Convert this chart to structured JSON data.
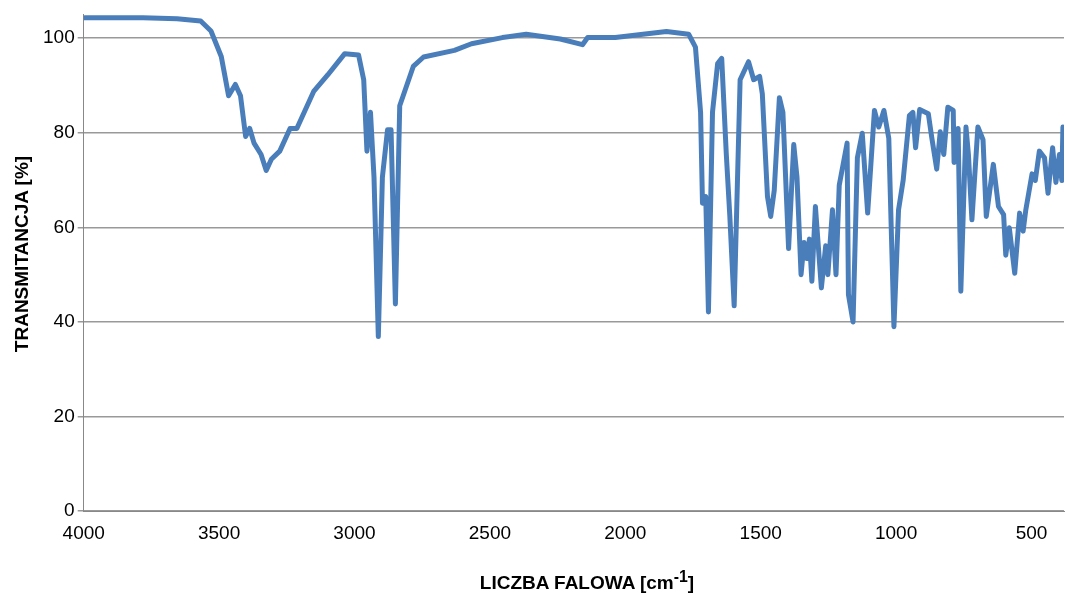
{
  "chart_data": {
    "type": "line",
    "xlabel": "LICZBA FALOWA [cm$^{-1}$]",
    "ylabel": "TRANSMITANCJA [%]",
    "xlim": [
      4000,
      380
    ],
    "xticks": [
      4000,
      3500,
      3000,
      2500,
      2000,
      1500,
      1000,
      500
    ],
    "ylim": [
      0,
      105
    ],
    "yticks": [
      0,
      20,
      40,
      60,
      80,
      100
    ],
    "grid": "y",
    "marker": "none",
    "line_style": "solid",
    "series": [
      {
        "color": "#4a7ebb",
        "x": [
          3996,
          3781,
          3655,
          3568,
          3530,
          3492,
          3465,
          3440,
          3421,
          3402,
          3387,
          3371,
          3345,
          3326,
          3307,
          3276,
          3238,
          3213,
          3150,
          3099,
          3036,
          2985,
          2966,
          2954,
          2941,
          2928,
          2912,
          2897,
          2878,
          2865,
          2849,
          2833,
          2783,
          2745,
          2631,
          2568,
          2454,
          2366,
          2240,
          2158,
          2139,
          2037,
          1848,
          1766,
          1741,
          1722,
          1715,
          1703,
          1693,
          1678,
          1659,
          1644,
          1627,
          1614,
          1598,
          1576,
          1545,
          1526,
          1504,
          1494,
          1475,
          1463,
          1450,
          1431,
          1418,
          1397,
          1378,
          1366,
          1351,
          1340,
          1330,
          1320,
          1311,
          1298,
          1276,
          1260,
          1252,
          1235,
          1222,
          1210,
          1181,
          1176,
          1159,
          1143,
          1125,
          1105,
          1080,
          1064,
          1045,
          1027,
          1008,
          991,
          974,
          951,
          938,
          928,
          913,
          881,
          869,
          850,
          837,
          824,
          809,
          789,
          786,
          771,
          761,
          742,
          733,
          720,
          698,
          679,
          667,
          641,
          622,
          603,
          595,
          582,
          562,
          544,
          531,
          521,
          498,
          486,
          471,
          452,
          439,
          422,
          410,
          397,
          388,
          384
        ],
        "values": [
          104.3,
          104.3,
          104.1,
          103.6,
          101.5,
          96.1,
          87.8,
          90.2,
          87.8,
          79.2,
          80.9,
          77.8,
          75.4,
          72.0,
          74.4,
          76.1,
          80.9,
          80.9,
          88.8,
          92.2,
          96.7,
          96.4,
          91.2,
          76.1,
          84.3,
          70.6,
          36.9,
          70.6,
          80.6,
          80.6,
          43.8,
          85.7,
          94.0,
          96.0,
          97.4,
          98.8,
          100.1,
          100.8,
          99.8,
          98.6,
          100.1,
          100.1,
          101.4,
          100.8,
          98.1,
          84.3,
          65.1,
          66.5,
          42.1,
          84.3,
          94.6,
          95.7,
          75.4,
          62.3,
          43.4,
          91.2,
          95.0,
          91.2,
          91.9,
          88.2,
          66.5,
          62.3,
          67.8,
          87.4,
          84.3,
          55.5,
          77.5,
          70.6,
          50.0,
          56.8,
          53.4,
          57.5,
          48.6,
          64.4,
          47.2,
          56.1,
          50.0,
          63.7,
          50.0,
          68.9,
          77.8,
          45.8,
          40.0,
          74.7,
          79.9,
          63.0,
          84.7,
          81.2,
          84.7,
          78.8,
          39.0,
          63.7,
          69.9,
          83.6,
          84.3,
          76.8,
          84.9,
          84.0,
          79.2,
          72.3,
          80.2,
          75.4,
          85.4,
          84.7,
          73.7,
          80.9,
          46.5,
          81.2,
          75.4,
          61.6,
          81.2,
          78.5,
          62.3,
          73.3,
          64.4,
          62.7,
          54.1,
          59.9,
          50.3,
          63.0,
          59.2,
          63.7,
          71.3,
          69.9,
          76.1,
          74.7,
          67.2,
          76.8,
          69.5,
          75.4,
          69.9,
          81.2
        ]
      }
    ]
  }
}
